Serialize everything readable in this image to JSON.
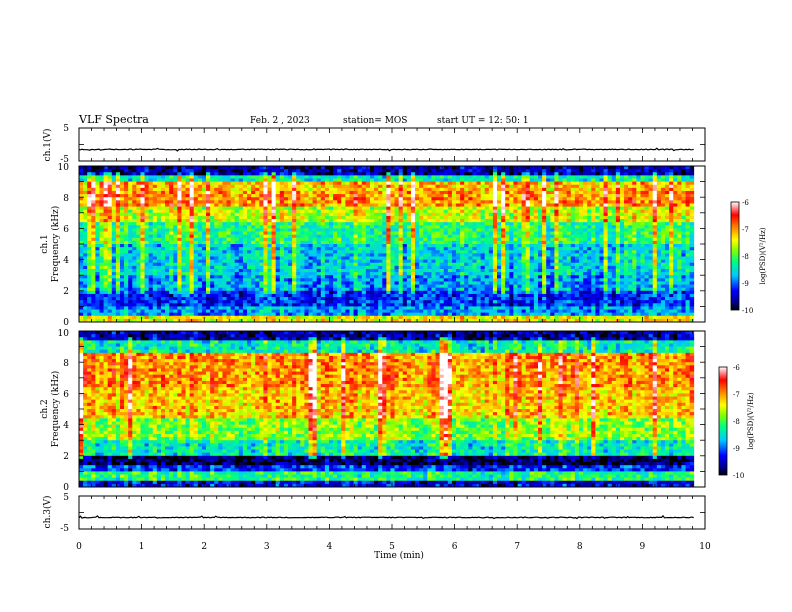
{
  "header": {
    "title": "VLF Spectra",
    "date": "Feb. 2 , 2023",
    "station": "station= MOS",
    "start": "start UT = 12: 50: 1"
  },
  "chart_data": [
    {
      "type": "line",
      "name": "ch1-voltage",
      "ylabel": "ch.1(V)",
      "ylim": [
        -5,
        5
      ],
      "ytick_labels": [
        "5",
        "-5"
      ],
      "xlim": [
        0,
        10
      ],
      "baseline_value": -1.5
    },
    {
      "type": "heatmap",
      "name": "ch1-spectrogram",
      "ylabel_line1": "ch.1",
      "ylabel_line2": "Frequency (kHz)",
      "ylim": [
        0,
        10
      ],
      "ytick_labels": [
        "0",
        "2",
        "4",
        "6",
        "8",
        "10"
      ],
      "xlim": [
        0,
        10
      ],
      "data_end_min": 9.82,
      "colorbar": {
        "label": "log(PSD)(V²/Hz)",
        "range": [
          -10,
          -6
        ],
        "tick_labels": [
          "-6",
          "-7",
          "-8",
          "-9",
          "-10"
        ]
      },
      "band_levels": [
        {
          "from_khz": 9.5,
          "to_khz": 10,
          "level": -9.6
        },
        {
          "from_khz": 9.0,
          "to_khz": 9.5,
          "level": -8.4
        },
        {
          "from_khz": 8.5,
          "to_khz": 9.0,
          "level": -7.2
        },
        {
          "from_khz": 7.5,
          "to_khz": 8.5,
          "level": -7.0
        },
        {
          "from_khz": 6.5,
          "to_khz": 7.5,
          "level": -7.6
        },
        {
          "from_khz": 5.0,
          "to_khz": 6.5,
          "level": -8.2
        },
        {
          "from_khz": 3.0,
          "to_khz": 5.0,
          "level": -8.6
        },
        {
          "from_khz": 2.0,
          "to_khz": 3.0,
          "level": -8.8
        },
        {
          "from_khz": 1.0,
          "to_khz": 2.0,
          "level": -9.2
        },
        {
          "from_khz": 0.5,
          "to_khz": 1.0,
          "level": -8.8
        },
        {
          "from_khz": 0.0,
          "to_khz": 0.5,
          "level": -7.4
        }
      ]
    },
    {
      "type": "heatmap",
      "name": "ch2-spectrogram",
      "ylabel_line1": "ch.2",
      "ylabel_line2": "Frequency (kHz)",
      "ylim": [
        0,
        10
      ],
      "ytick_labels": [
        "0",
        "2",
        "4",
        "6",
        "8",
        "10"
      ],
      "xlim": [
        0,
        10
      ],
      "data_end_min": 9.82,
      "colorbar": {
        "label": "log(PSD)(V²/Hz)",
        "range": [
          -10,
          -6
        ],
        "tick_labels": [
          "-6",
          "-7",
          "-8",
          "-9",
          "-10"
        ]
      },
      "band_levels": [
        {
          "from_khz": 9.5,
          "to_khz": 10,
          "level": -9.6
        },
        {
          "from_khz": 8.7,
          "to_khz": 9.5,
          "level": -8.4
        },
        {
          "from_khz": 6.5,
          "to_khz": 8.7,
          "level": -7.0
        },
        {
          "from_khz": 4.5,
          "to_khz": 6.5,
          "level": -7.2
        },
        {
          "from_khz": 3.0,
          "to_khz": 4.5,
          "level": -7.8
        },
        {
          "from_khz": 2.0,
          "to_khz": 3.0,
          "level": -8.4
        },
        {
          "from_khz": 1.5,
          "to_khz": 2.0,
          "level": -9.8
        },
        {
          "from_khz": 1.0,
          "to_khz": 1.5,
          "level": -9.2
        },
        {
          "from_khz": 0.5,
          "to_khz": 1.0,
          "level": -8.2
        },
        {
          "from_khz": 0.0,
          "to_khz": 0.5,
          "level": -9.4
        }
      ]
    },
    {
      "type": "line",
      "name": "ch3-voltage",
      "ylabel": "ch.3(V)",
      "ylim": [
        -5,
        5
      ],
      "ytick_labels": [
        "5",
        "-5"
      ],
      "xlim": [
        0,
        10
      ],
      "baseline_value": -1.5
    }
  ],
  "xaxis": {
    "label": "Time (min)",
    "range": [
      0,
      10
    ],
    "tick_labels": [
      "0",
      "1",
      "2",
      "3",
      "4",
      "5",
      "6",
      "7",
      "8",
      "9",
      "10"
    ]
  },
  "colors": {
    "stops": [
      "#000000",
      "#00008b",
      "#0000ff",
      "#00c8ff",
      "#00ff80",
      "#80ff00",
      "#ffff00",
      "#ff8000",
      "#ff0000",
      "#ffffff"
    ]
  }
}
